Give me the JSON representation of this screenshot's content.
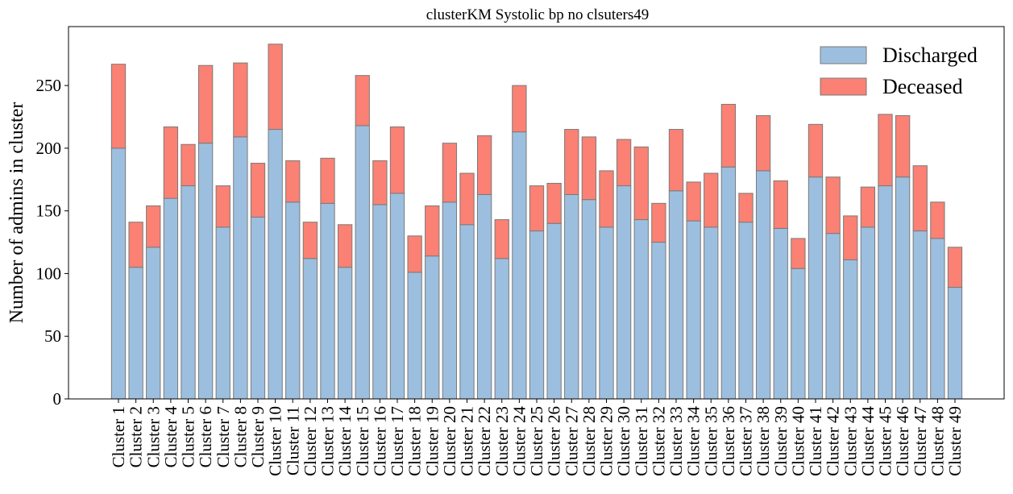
{
  "chart_data": {
    "type": "bar",
    "stacked": true,
    "title": "clusterKM Systolic bp no clsuters49",
    "xlabel": "",
    "ylabel": "Number of admins in cluster",
    "ylim": [
      0,
      297
    ],
    "yticks": [
      0,
      50,
      100,
      150,
      200,
      250
    ],
    "grid": false,
    "legend_position": "top-right",
    "categories": [
      "Cluster 1",
      "Cluster 2",
      "Cluster 3",
      "Cluster 4",
      "Cluster 5",
      "Cluster 6",
      "Cluster 7",
      "Cluster 8",
      "Cluster 9",
      "Cluster 10",
      "Cluster 11",
      "Cluster 12",
      "Cluster 13",
      "Cluster 14",
      "Cluster 15",
      "Cluster 16",
      "Cluster 17",
      "Cluster 18",
      "Cluster 19",
      "Cluster 20",
      "Cluster 21",
      "Cluster 22",
      "Cluster 23",
      "Cluster 24",
      "Cluster 25",
      "Cluster 26",
      "Cluster 27",
      "Cluster 28",
      "Cluster 29",
      "Cluster 30",
      "Cluster 31",
      "Cluster 32",
      "Cluster 33",
      "Cluster 34",
      "Cluster 35",
      "Cluster 36",
      "Cluster 37",
      "Cluster 38",
      "Cluster 39",
      "Cluster 40",
      "Cluster 41",
      "Cluster 42",
      "Cluster 43",
      "Cluster 44",
      "Cluster 45",
      "Cluster 46",
      "Cluster 47",
      "Cluster 48",
      "Cluster 49"
    ],
    "series": [
      {
        "name": "Discharged",
        "color": "#9dbfdf",
        "values": [
          200,
          105,
          121,
          160,
          170,
          204,
          137,
          209,
          145,
          215,
          157,
          112,
          156,
          105,
          218,
          155,
          164,
          101,
          114,
          157,
          139,
          163,
          112,
          213,
          134,
          140,
          163,
          159,
          137,
          170,
          143,
          125,
          166,
          142,
          137,
          185,
          141,
          182,
          136,
          104,
          177,
          132,
          111,
          137,
          170,
          177,
          134,
          128,
          89
        ]
      },
      {
        "name": "Deceased",
        "color": "#fa8173",
        "values": [
          67,
          36,
          33,
          57,
          33,
          62,
          33,
          59,
          43,
          68,
          33,
          29,
          36,
          34,
          40,
          35,
          53,
          29,
          40,
          47,
          41,
          47,
          31,
          37,
          36,
          32,
          52,
          50,
          45,
          37,
          58,
          31,
          49,
          31,
          43,
          50,
          23,
          44,
          38,
          24,
          42,
          45,
          35,
          32,
          57,
          49,
          52,
          29,
          32
        ]
      }
    ]
  }
}
